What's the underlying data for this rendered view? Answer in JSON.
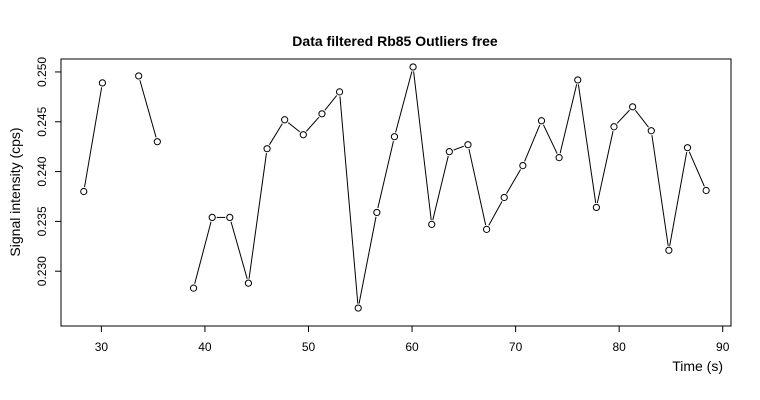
{
  "chart_data": {
    "type": "line",
    "title": "Data filtered Rb85 Outliers free",
    "xlabel": "Time (s)",
    "ylabel": "Signal intensity (cps)",
    "xlim": [
      26.1,
      90.8
    ],
    "ylim": [
      0.2245,
      0.2513
    ],
    "xticks": [
      30,
      40,
      50,
      60,
      70,
      80,
      90
    ],
    "yticks": [
      0.23,
      0.235,
      0.24,
      0.245,
      0.25
    ],
    "xtick_labels": [
      "30",
      "40",
      "50",
      "60",
      "70",
      "80",
      "90"
    ],
    "ytick_labels": [
      "0.230",
      "0.235",
      "0.240",
      "0.245",
      "0.250"
    ],
    "grid": false,
    "legend": "none",
    "series": [
      {
        "segments": [
          [
            {
              "x": 28.3,
              "y": 0.238
            },
            {
              "x": 30.1,
              "y": 0.2489
            }
          ],
          [
            {
              "x": 33.6,
              "y": 0.2496
            },
            {
              "x": 35.4,
              "y": 0.243
            }
          ],
          [
            {
              "x": 38.9,
              "y": 0.2283
            },
            {
              "x": 40.7,
              "y": 0.2354
            },
            {
              "x": 42.4,
              "y": 0.2354
            },
            {
              "x": 44.2,
              "y": 0.2288
            },
            {
              "x": 46.0,
              "y": 0.2423
            },
            {
              "x": 47.7,
              "y": 0.2452
            },
            {
              "x": 49.5,
              "y": 0.2437
            },
            {
              "x": 51.3,
              "y": 0.2458
            },
            {
              "x": 53.0,
              "y": 0.248
            },
            {
              "x": 54.8,
              "y": 0.2263
            },
            {
              "x": 56.6,
              "y": 0.2359
            },
            {
              "x": 58.3,
              "y": 0.2435
            },
            {
              "x": 60.1,
              "y": 0.2505
            },
            {
              "x": 61.9,
              "y": 0.2347
            },
            {
              "x": 63.6,
              "y": 0.242
            },
            {
              "x": 65.4,
              "y": 0.2427
            },
            {
              "x": 67.2,
              "y": 0.2342
            },
            {
              "x": 68.9,
              "y": 0.2374
            },
            {
              "x": 70.7,
              "y": 0.2406
            },
            {
              "x": 72.5,
              "y": 0.2451
            },
            {
              "x": 74.2,
              "y": 0.2414
            },
            {
              "x": 76.0,
              "y": 0.2492
            },
            {
              "x": 77.8,
              "y": 0.2364
            },
            {
              "x": 79.5,
              "y": 0.2445
            },
            {
              "x": 81.3,
              "y": 0.2465
            },
            {
              "x": 83.1,
              "y": 0.2441
            },
            {
              "x": 84.8,
              "y": 0.2321
            },
            {
              "x": 86.6,
              "y": 0.2424
            },
            {
              "x": 88.4,
              "y": 0.2381
            }
          ]
        ]
      }
    ]
  }
}
